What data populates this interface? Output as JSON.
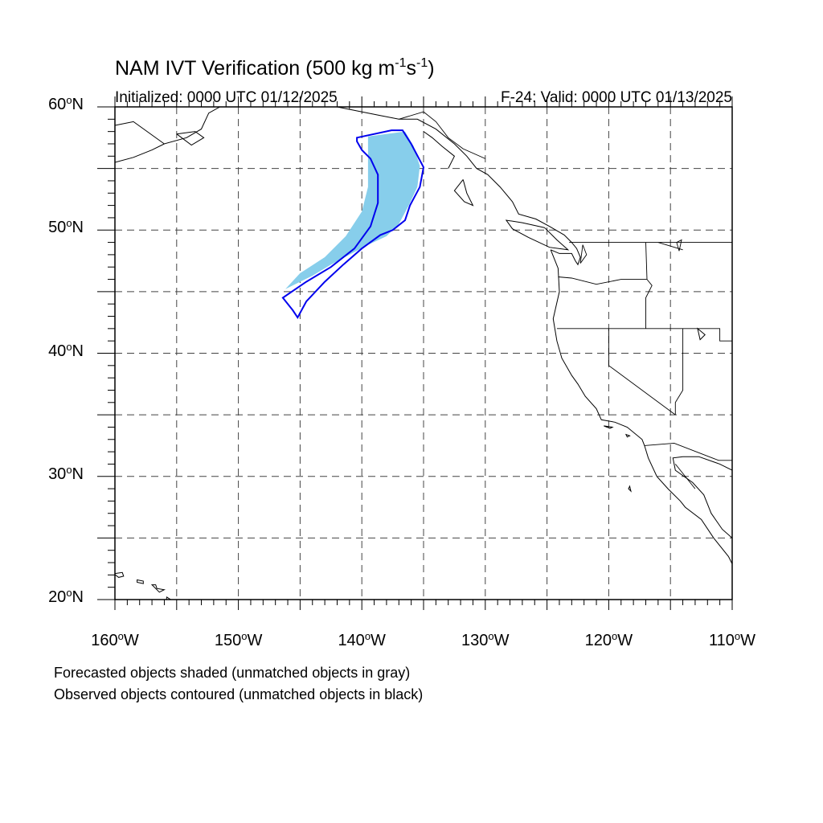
{
  "title": {
    "prefix": "NAM IVT Verification (500 kg m",
    "exp1": "-1",
    "mid": "s",
    "exp2": "-1",
    "suffix": ")"
  },
  "initialized": "Initialized: 0000 UTC 01/12/2025",
  "valid": "F-24: Valid: 0000 UTC 01/13/2025",
  "map": {
    "lat_range": [
      20,
      60
    ],
    "lon_range": [
      -160,
      -110
    ],
    "lat_labels": [
      {
        "value": 60,
        "num": "60",
        "hemi": "N"
      },
      {
        "value": 50,
        "num": "50",
        "hemi": "N"
      },
      {
        "value": 40,
        "num": "40",
        "hemi": "N"
      },
      {
        "value": 30,
        "num": "30",
        "hemi": "N"
      },
      {
        "value": 20,
        "num": "20",
        "hemi": "N"
      }
    ],
    "lon_labels": [
      {
        "value": -160,
        "num": "160",
        "hemi": "W"
      },
      {
        "value": -150,
        "num": "150",
        "hemi": "W"
      },
      {
        "value": -140,
        "num": "140",
        "hemi": "W"
      },
      {
        "value": -130,
        "num": "130",
        "hemi": "W"
      },
      {
        "value": -120,
        "num": "120",
        "hemi": "W"
      },
      {
        "value": -110,
        "num": "110",
        "hemi": "W"
      }
    ],
    "gridlines": {
      "style": "dashed",
      "lat_every": 5,
      "lon_every": 5
    },
    "colors": {
      "forecast_fill": "#87ceeb",
      "observed_contour": "#0000ee",
      "coastline": "#000000",
      "grid": "#444444"
    },
    "forecast_object": {
      "label": "forecast object (shaded)",
      "points": [
        [
          -139.5,
          57.6
        ],
        [
          -136.5,
          58.0
        ],
        [
          -135.8,
          56.8
        ],
        [
          -135.3,
          55.2
        ],
        [
          -135.5,
          53.5
        ],
        [
          -136.2,
          52.0
        ],
        [
          -137.0,
          50.5
        ],
        [
          -138.0,
          49.5
        ],
        [
          -139.5,
          48.8
        ],
        [
          -141.0,
          48.0
        ],
        [
          -142.5,
          47.2
        ],
        [
          -144.0,
          46.3
        ],
        [
          -146.2,
          45.2
        ],
        [
          -145.0,
          46.5
        ],
        [
          -143.0,
          47.8
        ],
        [
          -141.3,
          49.5
        ],
        [
          -140.0,
          51.5
        ],
        [
          -139.5,
          53.5
        ],
        [
          -139.5,
          55.5
        ]
      ]
    },
    "observed_object": {
      "label": "observed object (contoured)",
      "points": [
        [
          -140.4,
          57.5
        ],
        [
          -137.6,
          58.1
        ],
        [
          -136.7,
          58.1
        ],
        [
          -136.0,
          57.0
        ],
        [
          -135.0,
          55.1
        ],
        [
          -135.3,
          53.5
        ],
        [
          -136.1,
          52.0
        ],
        [
          -136.5,
          50.8
        ],
        [
          -137.5,
          50.0
        ],
        [
          -138.5,
          49.6
        ],
        [
          -140.0,
          48.5
        ],
        [
          -141.5,
          47.2
        ],
        [
          -143.0,
          45.8
        ],
        [
          -144.5,
          44.2
        ],
        [
          -145.2,
          42.9
        ],
        [
          -145.6,
          43.5
        ],
        [
          -146.4,
          44.5
        ],
        [
          -144.5,
          45.8
        ],
        [
          -142.5,
          47.0
        ],
        [
          -140.6,
          48.5
        ],
        [
          -139.3,
          50.3
        ],
        [
          -138.7,
          52.2
        ],
        [
          -138.7,
          54.5
        ],
        [
          -139.3,
          55.8
        ],
        [
          -140.0,
          56.5
        ],
        [
          -140.4,
          57.2
        ]
      ]
    },
    "coastlines": [
      [
        [
          -124.7,
          48.4
        ],
        [
          -124.1,
          46.9
        ],
        [
          -124.0,
          45.0
        ],
        [
          -124.5,
          42.8
        ],
        [
          -124.2,
          41.0
        ],
        [
          -123.8,
          39.6
        ],
        [
          -123.0,
          38.2
        ],
        [
          -122.5,
          37.5
        ],
        [
          -121.9,
          36.5
        ],
        [
          -121.0,
          35.5
        ],
        [
          -120.6,
          34.6
        ],
        [
          -119.5,
          34.4
        ],
        [
          -118.5,
          34.0
        ],
        [
          -117.3,
          33.0
        ],
        [
          -117.1,
          32.5
        ],
        [
          -116.8,
          31.5
        ],
        [
          -116.1,
          30.0
        ],
        [
          -115.2,
          29.0
        ],
        [
          -114.2,
          28.0
        ],
        [
          -113.8,
          27.5
        ],
        [
          -112.5,
          26.5
        ],
        [
          -111.5,
          25.0
        ],
        [
          -110.3,
          23.5
        ],
        [
          -110.0,
          22.9
        ]
      ],
      [
        [
          -110.0,
          30.5
        ],
        [
          -111.0,
          31.0
        ],
        [
          -112.7,
          31.6
        ],
        [
          -114.0,
          31.6
        ],
        [
          -114.8,
          31.5
        ],
        [
          -114.6,
          30.5
        ],
        [
          -113.2,
          29.5
        ],
        [
          -112.3,
          28.5
        ],
        [
          -111.7,
          27.0
        ],
        [
          -110.8,
          25.7
        ],
        [
          -110.0,
          25.0
        ]
      ],
      [
        [
          -124.7,
          48.4
        ],
        [
          -124.0,
          48.1
        ],
        [
          -123.0,
          48.1
        ],
        [
          -122.7,
          47.5
        ],
        [
          -122.5,
          47.2
        ],
        [
          -122.3,
          47.8
        ],
        [
          -122.6,
          48.5
        ],
        [
          -123.0,
          49.0
        ],
        [
          -123.6,
          49.6
        ],
        [
          -124.8,
          50.3
        ],
        [
          -125.9,
          50.9
        ],
        [
          -127.3,
          51.3
        ],
        [
          -127.8,
          52.3
        ],
        [
          -128.8,
          53.5
        ],
        [
          -129.8,
          54.5
        ],
        [
          -130.7,
          55.0
        ],
        [
          -131.5,
          56.0
        ],
        [
          -132.5,
          57.0
        ],
        [
          -134.0,
          58.2
        ],
        [
          -135.5,
          59.0
        ],
        [
          -137.0,
          59.0
        ],
        [
          -138.5,
          59.3
        ],
        [
          -140.5,
          59.7
        ],
        [
          -142.0,
          60.0
        ]
      ],
      [
        [
          -125.2,
          50.2
        ],
        [
          -124.2,
          49.2
        ],
        [
          -123.3,
          48.4
        ],
        [
          -124.8,
          48.6
        ],
        [
          -126.5,
          49.4
        ],
        [
          -127.8,
          50.1
        ],
        [
          -128.3,
          50.8
        ],
        [
          -127.0,
          50.6
        ],
        [
          -125.2,
          50.2
        ]
      ],
      [
        [
          -131.8,
          54.1
        ],
        [
          -132.5,
          53.2
        ],
        [
          -131.7,
          52.3
        ],
        [
          -131.0,
          52.0
        ],
        [
          -131.5,
          53.0
        ],
        [
          -131.8,
          54.1
        ]
      ],
      [
        [
          -133.0,
          55.0
        ],
        [
          -132.5,
          56.0
        ],
        [
          -133.5,
          56.8
        ],
        [
          -134.3,
          57.5
        ],
        [
          -135.0,
          58.0
        ]
      ],
      [
        [
          -160.0,
          58.5
        ],
        [
          -158.5,
          58.8
        ],
        [
          -157.8,
          58.3
        ],
        [
          -156.0,
          57.0
        ],
        [
          -154.2,
          57.5
        ],
        [
          -153.0,
          58.2
        ],
        [
          -152.4,
          59.5
        ],
        [
          -151.5,
          60.0
        ]
      ],
      [
        [
          -155.0,
          57.8
        ],
        [
          -153.8,
          56.9
        ],
        [
          -152.8,
          57.5
        ],
        [
          -153.5,
          58.0
        ],
        [
          -155.0,
          57.8
        ]
      ],
      [
        [
          -160.0,
          55.5
        ],
        [
          -158.5,
          55.9
        ],
        [
          -157.0,
          56.5
        ],
        [
          -156.0,
          57.0
        ]
      ],
      [
        [
          -110.0,
          59.5
        ],
        [
          -109.0,
          60.0
        ]
      ]
    ],
    "islands": [
      [
        [
          -160.1,
          22.1
        ],
        [
          -159.4,
          22.2
        ],
        [
          -159.3,
          21.9
        ],
        [
          -159.7,
          21.8
        ],
        [
          -160.1,
          22.1
        ]
      ],
      [
        [
          -158.2,
          21.6
        ],
        [
          -157.7,
          21.5
        ],
        [
          -157.7,
          21.3
        ],
        [
          -158.2,
          21.4
        ],
        [
          -158.2,
          21.6
        ]
      ],
      [
        [
          -157.0,
          21.2
        ],
        [
          -156.7,
          21.2
        ],
        [
          -156.6,
          20.9
        ],
        [
          -156.0,
          20.8
        ],
        [
          -156.4,
          20.6
        ],
        [
          -157.0,
          21.2
        ]
      ],
      [
        [
          -155.8,
          20.2
        ],
        [
          -155.0,
          19.7
        ],
        [
          -155.3,
          19.0
        ],
        [
          -155.9,
          19.3
        ],
        [
          -155.8,
          20.2
        ]
      ],
      [
        [
          -120.4,
          34.1
        ],
        [
          -119.7,
          34.0
        ],
        [
          -119.9,
          33.9
        ],
        [
          -120.4,
          34.1
        ]
      ],
      [
        [
          -118.6,
          33.4
        ],
        [
          -118.3,
          33.3
        ],
        [
          -118.5,
          33.2
        ],
        [
          -118.6,
          33.4
        ]
      ],
      [
        [
          -118.3,
          29.2
        ],
        [
          -118.2,
          28.8
        ],
        [
          -118.4,
          29.0
        ],
        [
          -118.3,
          29.2
        ]
      ],
      [
        [
          -112.8,
          42.0
        ],
        [
          -112.2,
          41.5
        ],
        [
          -112.6,
          41.1
        ],
        [
          -112.8,
          42.0
        ]
      ]
    ],
    "borders": [
      [
        [
          -123.2,
          49.0
        ],
        [
          -110.0,
          49.0
        ]
      ],
      [
        [
          -124.2,
          42.0
        ],
        [
          -120.0,
          42.0
        ],
        [
          -111.0,
          42.0
        ],
        [
          -111.0,
          41.0
        ],
        [
          -110.0,
          41.0
        ]
      ],
      [
        [
          -120.0,
          42.0
        ],
        [
          -120.0,
          39.0
        ],
        [
          -114.6,
          35.0
        ]
      ],
      [
        [
          -117.0,
          42.0
        ],
        [
          -117.0,
          44.5
        ],
        [
          -116.5,
          45.5
        ],
        [
          -116.9,
          46.0
        ],
        [
          -117.0,
          49.0
        ]
      ],
      [
        [
          -124.1,
          46.2
        ],
        [
          -123.0,
          46.1
        ],
        [
          -121.0,
          45.6
        ],
        [
          -119.0,
          46.0
        ],
        [
          -116.9,
          46.0
        ]
      ],
      [
        [
          -114.0,
          42.0
        ],
        [
          -114.0,
          37.0
        ],
        [
          -114.6,
          36.0
        ],
        [
          -114.6,
          35.0
        ]
      ],
      [
        [
          -117.1,
          32.5
        ],
        [
          -114.7,
          32.7
        ],
        [
          -111.1,
          31.3
        ],
        [
          -110.0,
          31.3
        ]
      ],
      [
        [
          -116.0,
          49.0
        ],
        [
          -114.0,
          48.4
        ]
      ],
      [
        [
          -141.0,
          60.0
        ],
        [
          -141.0,
          59.8
        ]
      ],
      [
        [
          -137.0,
          59.0
        ],
        [
          -135.0,
          59.6
        ],
        [
          -134.0,
          58.8
        ],
        [
          -133.0,
          57.5
        ],
        [
          -131.8,
          56.6
        ],
        [
          -130.0,
          55.8
        ]
      ],
      [
        [
          -114.6,
          31.0
        ],
        [
          -113.0,
          29.0
        ]
      ]
    ],
    "lakes": [
      [
        [
          -114.1,
          49.2
        ],
        [
          -114.3,
          48.3
        ],
        [
          -114.5,
          49.0
        ],
        [
          -114.1,
          49.2
        ]
      ],
      [
        [
          -122.1,
          48.8
        ],
        [
          -121.8,
          48.0
        ],
        [
          -122.3,
          47.3
        ],
        [
          -122.1,
          48.8
        ]
      ]
    ]
  },
  "legend_notes": [
    "Forecasted objects shaded (unmatched objects in gray)",
    "Observed objects contoured (unmatched objects in black)"
  ]
}
